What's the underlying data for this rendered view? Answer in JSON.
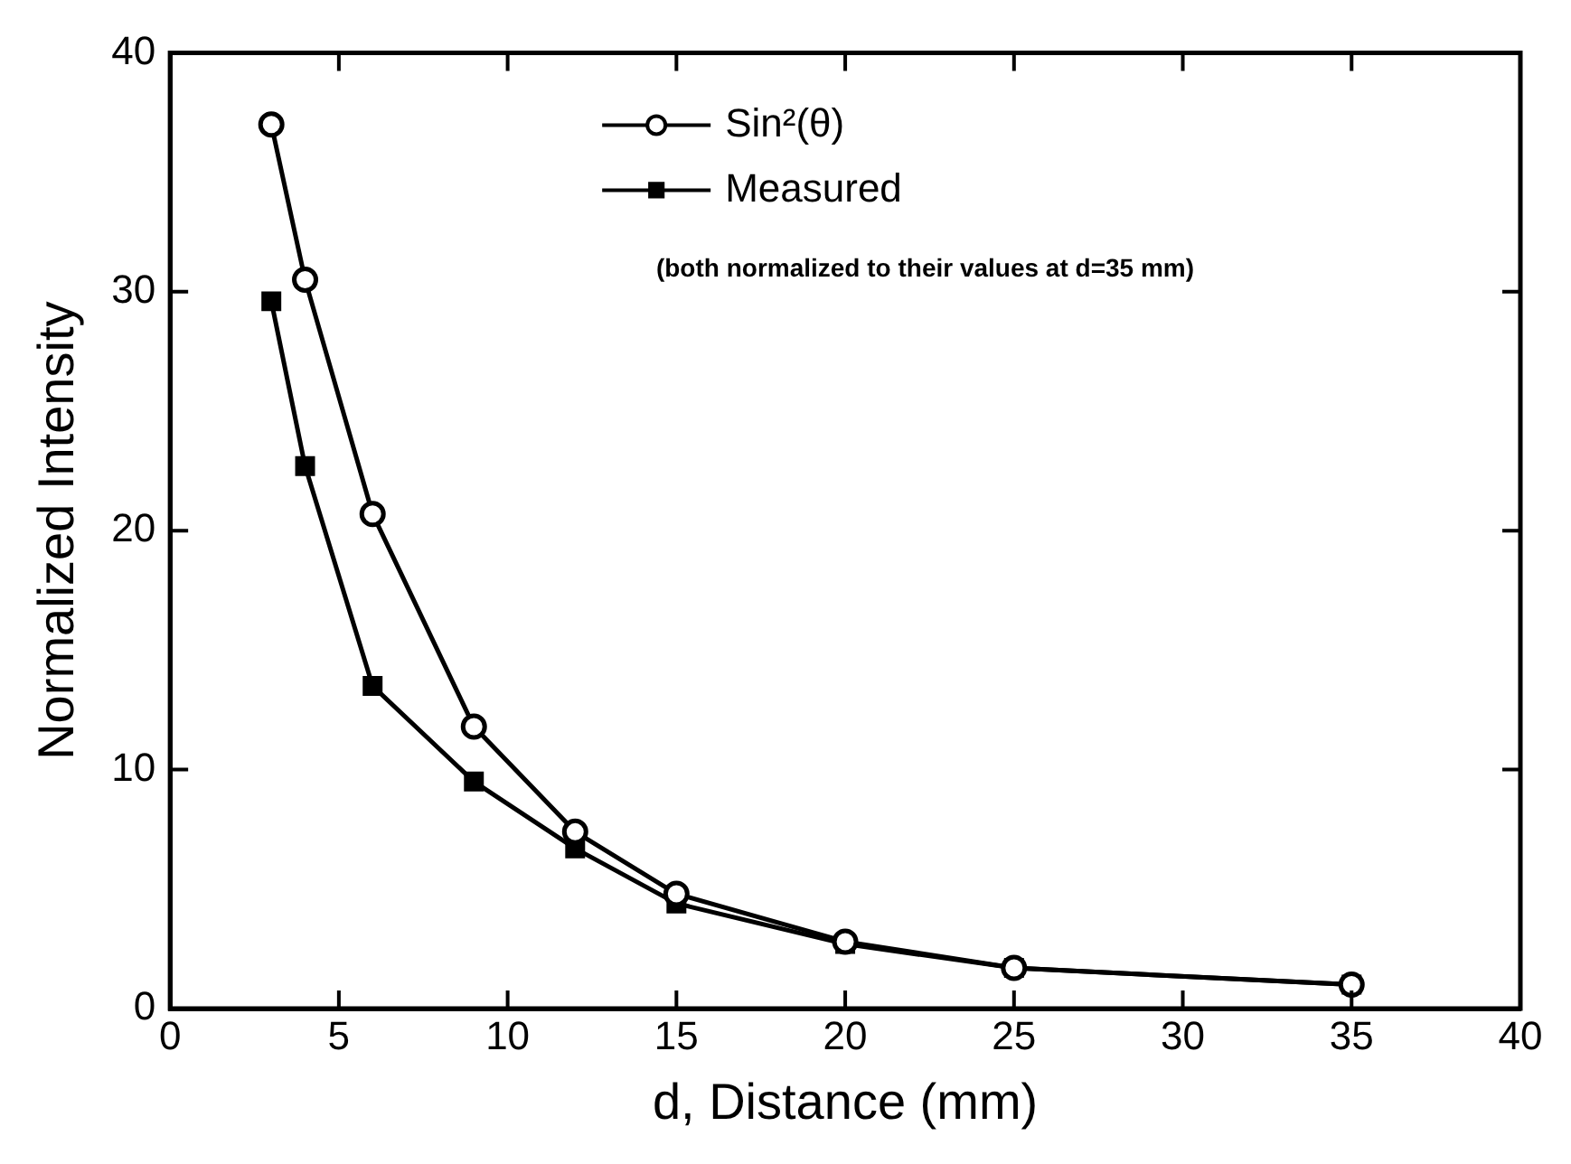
{
  "chart_data": {
    "type": "line",
    "xlabel": "d, Distance (mm)",
    "ylabel": "Normalized Intensity",
    "x": [
      3,
      4,
      6,
      9,
      12,
      15,
      20,
      25,
      35
    ],
    "series": [
      {
        "name": "Sin²(θ)",
        "color": "#000000",
        "marker": "circle",
        "values": [
          37,
          30.5,
          20.7,
          11.8,
          7.4,
          4.8,
          2.8,
          1.7,
          1.0
        ]
      },
      {
        "name": "Measured",
        "color": "#000000",
        "marker": "square",
        "values": [
          29.6,
          22.7,
          13.5,
          9.5,
          6.7,
          4.4,
          2.7,
          1.7,
          1.0
        ]
      }
    ],
    "annotations": [
      "(both normalized to their values at d=35 mm)"
    ],
    "xlim": [
      0,
      40
    ],
    "xticks": [
      0,
      5,
      10,
      15,
      20,
      25,
      30,
      35,
      40
    ],
    "ylim": [
      0,
      40
    ],
    "yticks": [
      0,
      10,
      20,
      30,
      40
    ],
    "grid": false,
    "legend": "top"
  }
}
